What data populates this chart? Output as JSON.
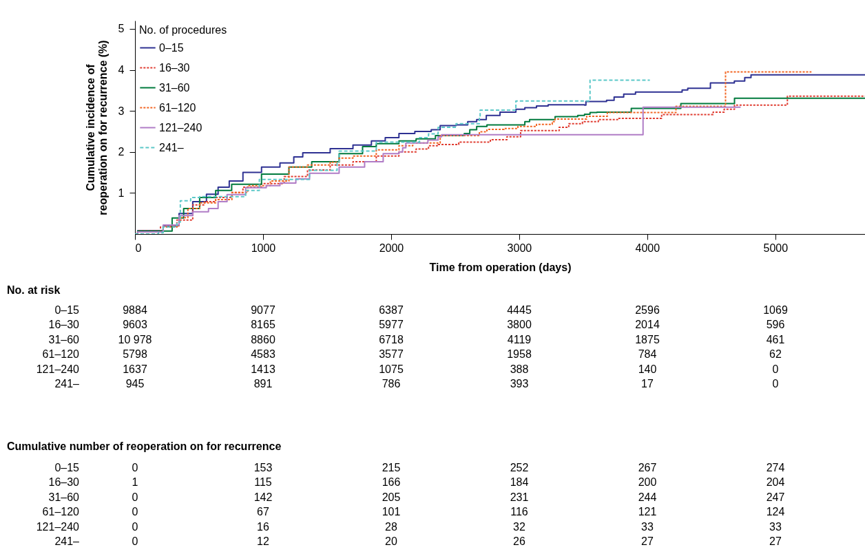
{
  "chart_data": [
    {
      "type": "step",
      "xlabel": "Time from operation (days)",
      "ylabel": "Cumulative incidence of\nreoperation on for recurrence (%)",
      "legend_title": "No. of procedures",
      "legend": "top left",
      "grid": false,
      "xlim": [
        0,
        5700
      ],
      "ylim": [
        0,
        5.2
      ],
      "xticks": [
        0,
        1000,
        2000,
        3000,
        4000,
        5000
      ],
      "yticks": [
        1,
        2,
        3,
        4,
        5
      ],
      "series": [
        {
          "name": "0–15",
          "color": "#2e3192",
          "line_style": "solid",
          "x": [
            0,
            21,
            220,
            344,
            451,
            558,
            649,
            736,
            843,
            988,
            1132,
            1240,
            1310,
            1524,
            1702,
            1846,
            1954,
            2061,
            2185,
            2313,
            2383,
            2507,
            2598,
            2668,
            2743,
            2850,
            2974,
            3044,
            3135,
            3226,
            3510,
            3521,
            3682,
            3741,
            3816,
            3908,
            4272,
            4316,
            4493,
            4680,
            4761,
            4810,
            5700
          ],
          "values": [
            0,
            0.08,
            0.2,
            0.5,
            0.79,
            0.97,
            1.14,
            1.29,
            1.5,
            1.63,
            1.73,
            1.88,
            1.98,
            2.08,
            2.17,
            2.27,
            2.35,
            2.45,
            2.5,
            2.54,
            2.64,
            2.66,
            2.74,
            2.79,
            2.89,
            2.97,
            3.04,
            3.08,
            3.12,
            3.15,
            3.14,
            3.23,
            3.26,
            3.34,
            3.41,
            3.46,
            3.51,
            3.55,
            3.68,
            3.73,
            3.81,
            3.88,
            3.88
          ]
        },
        {
          "name": "16–30",
          "color": "#e03c31",
          "line_style": "dotted",
          "x": [
            0,
            21,
            199,
            327,
            451,
            542,
            630,
            757,
            843,
            988,
            1165,
            1347,
            1524,
            1702,
            1884,
            2061,
            2195,
            2292,
            2367,
            2528,
            2775,
            2904,
            3011,
            3312,
            3387,
            3494,
            3618,
            3768,
            4112,
            4514,
            4600,
            4681,
            5094,
            5700
          ],
          "values": [
            0,
            0.08,
            0.17,
            0.34,
            0.71,
            0.79,
            0.89,
            1.01,
            1.14,
            1.23,
            1.4,
            1.56,
            1.68,
            1.76,
            1.9,
            2.0,
            2.07,
            2.15,
            2.18,
            2.24,
            2.3,
            2.37,
            2.52,
            2.6,
            2.69,
            2.74,
            2.79,
            2.82,
            2.91,
            2.97,
            3.04,
            3.14,
            3.36,
            3.36
          ]
        },
        {
          "name": "31–60",
          "color": "#007a3d",
          "line_style": "solid",
          "x": [
            0,
            21,
            290,
            380,
            505,
            630,
            755,
            988,
            1202,
            1380,
            1594,
            1777,
            1884,
            2061,
            2195,
            2346,
            2571,
            2614,
            2668,
            2748,
            3044,
            3081,
            3280,
            3457,
            3510,
            3553,
            3607,
            3875,
            4262,
            4681,
            5700
          ],
          "values": [
            0,
            0.07,
            0.39,
            0.62,
            0.89,
            1.06,
            1.21,
            1.46,
            1.63,
            1.76,
            1.96,
            2.13,
            2.2,
            2.27,
            2.32,
            2.4,
            2.45,
            2.54,
            2.62,
            2.66,
            2.74,
            2.79,
            2.86,
            2.89,
            2.92,
            2.96,
            2.97,
            3.06,
            3.18,
            3.31,
            3.31
          ]
        },
        {
          "name": "61–120",
          "color": "#f26522",
          "line_style": "dotted",
          "x": [
            0,
            21,
            220,
            344,
            413,
            505,
            630,
            757,
            880,
            1057,
            1202,
            1347,
            1524,
            1594,
            1702,
            1884,
            2061,
            2169,
            2383,
            2689,
            2748,
            2882,
            2990,
            3135,
            3258,
            3280,
            3527,
            3688,
            4224,
            4611,
            5282
          ],
          "values": [
            0,
            0.05,
            0.18,
            0.4,
            0.62,
            0.76,
            0.84,
            1.01,
            1.18,
            1.29,
            1.63,
            1.68,
            1.75,
            1.85,
            1.9,
            2.05,
            2.15,
            2.22,
            2.4,
            2.49,
            2.55,
            2.57,
            2.62,
            2.67,
            2.74,
            2.8,
            2.87,
            2.96,
            3.11,
            3.95,
            3.95
          ]
        },
        {
          "name": "121–240",
          "color": "#b07cc6",
          "line_style": "solid",
          "x": [
            0,
            21,
            220,
            344,
            451,
            574,
            649,
            719,
            864,
            1025,
            1132,
            1256,
            1363,
            1594,
            1793,
            1938,
            2061,
            2090,
            2115,
            2287,
            2367,
            2394,
            3967,
            4729
          ],
          "values": [
            0,
            0.05,
            0.22,
            0.45,
            0.54,
            0.62,
            0.79,
            0.96,
            1.13,
            1.18,
            1.24,
            1.34,
            1.48,
            1.63,
            1.76,
            1.96,
            2.0,
            2.1,
            2.22,
            2.29,
            2.37,
            2.42,
            3.09,
            3.09
          ]
        },
        {
          "name": "241–",
          "color": "#5bc8c8",
          "line_style": "dashed",
          "x": [
            0,
            183,
            220,
            327,
            354,
            435,
            505,
            864,
            971,
            1363,
            1578,
            1594,
            1884,
            2222,
            2292,
            2367,
            2507,
            2689,
            2695,
            2974,
            3553,
            4020
          ],
          "values": [
            0,
            0.03,
            0.17,
            0.29,
            0.81,
            0.89,
            0.91,
            1.06,
            1.33,
            1.55,
            1.73,
            2.02,
            2.24,
            2.35,
            2.44,
            2.6,
            2.69,
            2.82,
            3.02,
            3.24,
            3.75,
            3.75
          ]
        }
      ]
    },
    {
      "type": "other",
      "title": "No. at risk",
      "annotations": [
        "0–15",
        "9884",
        "9077",
        "6387",
        "4445",
        "2596",
        "1069",
        "16–30",
        "9603",
        "8165",
        "5977",
        "3800",
        "2014",
        "596",
        "31–60",
        "10 978",
        "8860",
        "6718",
        "4119",
        "1875",
        "461",
        "61–120",
        "5798",
        "4583",
        "3577",
        "1958",
        "784",
        "62",
        "121–240",
        "1637",
        "1413",
        "1075",
        "388",
        "140",
        "0",
        "241–",
        "945",
        "891",
        "786",
        "393",
        "17",
        "0"
      ]
    },
    {
      "type": "other",
      "title": "Cumulative number of reoperation on for recurrence",
      "annotations": [
        "0–15",
        "0",
        "153",
        "215",
        "252",
        "267",
        "274",
        "16–30",
        "1",
        "115",
        "166",
        "184",
        "200",
        "204",
        "31–60",
        "0",
        "142",
        "205",
        "231",
        "244",
        "247",
        "61–120",
        "0",
        "67",
        "101",
        "116",
        "121",
        "124",
        "121–240",
        "0",
        "16",
        "28",
        "32",
        "33",
        "33",
        "241–",
        "0",
        "12",
        "20",
        "26",
        "27",
        "27"
      ]
    }
  ]
}
